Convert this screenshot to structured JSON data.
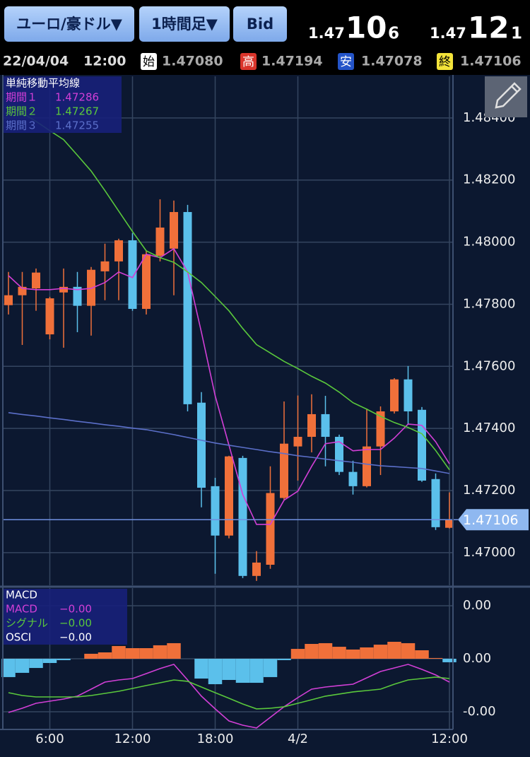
{
  "header": {
    "buttons": [
      "ユーロ/豪ドル▼",
      "1時間足▼",
      "Bid"
    ],
    "bid": {
      "prefix": "1.47",
      "big": "10",
      "small": "6"
    },
    "ask": {
      "prefix": "1.47",
      "big": "12",
      "small": "1"
    }
  },
  "info": {
    "date": "22/04/04",
    "time": "12:00",
    "open_label": "始",
    "open": "1.47080",
    "high_label": "高",
    "high": "1.47194",
    "low_label": "安",
    "low": "1.47078",
    "close_label": "終",
    "close": "1.47106"
  },
  "chart_data": [
    {
      "type": "candlestick",
      "legend_title": "単純移動平均線",
      "up_color": "#f0703a",
      "down_color": "#5bc0eb",
      "open": [
        1.47797,
        1.47829,
        1.47851,
        1.47703,
        1.47838,
        1.47856,
        1.47795,
        1.47906,
        1.47938,
        1.48006,
        1.47785,
        1.47956,
        1.47979,
        1.48097,
        1.47483,
        1.47214,
        1.47055,
        1.47305,
        1.46925,
        1.46961,
        1.47176,
        1.47342,
        1.47373,
        1.47446,
        1.47373,
        1.4726,
        1.47214,
        1.47342,
        1.47455,
        1.47558,
        1.4746,
        1.47237,
        1.4708
      ],
      "high": [
        1.47904,
        1.47904,
        1.47915,
        1.47824,
        1.47915,
        1.47904,
        1.4792,
        1.47995,
        1.48011,
        1.48029,
        1.47972,
        1.48138,
        1.48134,
        1.4812,
        1.47517,
        1.47241,
        1.47312,
        1.47312,
        1.47005,
        1.47278,
        1.47487,
        1.47506,
        1.4751,
        1.47505,
        1.4738,
        1.47296,
        1.47464,
        1.47471,
        1.47562,
        1.47601,
        1.47469,
        1.47255,
        1.47194
      ],
      "low": [
        1.47767,
        1.47669,
        1.47779,
        1.47687,
        1.4766,
        1.4771,
        1.47699,
        1.47813,
        1.47813,
        1.47779,
        1.47767,
        1.47938,
        1.47829,
        1.47455,
        1.47146,
        1.46932,
        1.47046,
        1.46918,
        1.46909,
        1.46948,
        1.47169,
        1.47232,
        1.47323,
        1.47278,
        1.4725,
        1.47187,
        1.4721,
        1.4725,
        1.47448,
        1.47414,
        1.47228,
        1.47073,
        1.47078
      ],
      "close": [
        1.47829,
        1.47856,
        1.47902,
        1.47819,
        1.47856,
        1.47795,
        1.47911,
        1.47938,
        1.48006,
        1.47785,
        1.47961,
        1.48047,
        1.48097,
        1.47478,
        1.47209,
        1.47055,
        1.4731,
        1.46925,
        1.46968,
        1.47192,
        1.47351,
        1.47373,
        1.47446,
        1.47373,
        1.4726,
        1.47214,
        1.47342,
        1.47455,
        1.47558,
        1.47455,
        1.47232,
        1.47082,
        1.47106
      ],
      "series": [
        {
          "name": "期間１",
          "color": "#d23fd6",
          "values": [
            1.47892,
            1.47851,
            1.47847,
            1.47847,
            1.47851,
            1.47847,
            1.47851,
            1.4787,
            1.47904,
            1.47886,
            1.47961,
            1.4795,
            1.47979,
            1.47904,
            1.4771,
            1.47505,
            1.47346,
            1.47187,
            1.47091,
            1.47091,
            1.47169,
            1.47198,
            1.47278,
            1.47351,
            1.47357,
            1.47328,
            1.47332,
            1.47332,
            1.47369,
            1.47414,
            1.4741,
            1.47357,
            1.47286
          ]
        },
        {
          "name": "期間２",
          "color": "#5ac83c",
          "values": [
            1.48439,
            1.48416,
            1.48389,
            1.48359,
            1.4833,
            1.4828,
            1.48229,
            1.48166,
            1.481,
            1.48034,
            1.47972,
            1.4795,
            1.47935,
            1.47904,
            1.4787,
            1.47825,
            1.47779,
            1.47722,
            1.4767,
            1.47643,
            1.47616,
            1.47593,
            1.47568,
            1.47546,
            1.47517,
            1.47483,
            1.47462,
            1.47439,
            1.47419,
            1.47403,
            1.47383,
            1.47329,
            1.47267
          ]
        },
        {
          "name": "期間３",
          "color": "#5b6fc9",
          "values": [
            1.47451,
            1.47445,
            1.4744,
            1.47434,
            1.47429,
            1.47423,
            1.47418,
            1.47412,
            1.47407,
            1.47401,
            1.47396,
            1.47388,
            1.4738,
            1.47371,
            1.47362,
            1.47353,
            1.47346,
            1.47339,
            1.47332,
            1.47325,
            1.47319,
            1.47312,
            1.47307,
            1.47301,
            1.47296,
            1.47291,
            1.47285,
            1.4728,
            1.47277,
            1.47274,
            1.47271,
            1.47263,
            1.47255
          ]
        }
      ],
      "current_price": 1.47106,
      "ylim": [
        1.46895,
        1.48534
      ],
      "yticks": [
        {
          "value": 1.47,
          "label": "1.47000"
        },
        {
          "value": 1.472,
          "label": "1.47200"
        },
        {
          "value": 1.474,
          "label": "1.47400"
        },
        {
          "value": 1.476,
          "label": "1.47600"
        },
        {
          "value": 1.478,
          "label": "1.47800"
        },
        {
          "value": 1.48,
          "label": "1.48000"
        },
        {
          "value": 1.482,
          "label": "1.48200"
        },
        {
          "value": 1.484,
          "label": "1.48400"
        }
      ],
      "grid": true
    },
    {
      "type": "macd",
      "legend_title": "MACD",
      "categories": [
        null,
        null,
        null,
        "6:00",
        null,
        null,
        null,
        null,
        null,
        "12:00",
        null,
        null,
        null,
        null,
        null,
        "18:00",
        null,
        null,
        null,
        null,
        null,
        "4/2",
        null,
        null,
        null,
        null,
        null,
        null,
        null,
        null,
        null,
        null,
        "12:00"
      ],
      "series": [
        {
          "name": "MACD",
          "color": "#d23fd6",
          "legend_value": "−0.00",
          "values": [
            -0.000507,
            -0.000467,
            -0.00042,
            -0.0004,
            -0.00038,
            -0.000353,
            -0.000287,
            -0.00022,
            -0.0002,
            -0.000187,
            -0.00014,
            -9.3e-05,
            -5.3e-05,
            -0.0002,
            -0.000353,
            -0.000473,
            -0.000587,
            -0.000627,
            -0.000653,
            -0.000553,
            -0.000453,
            -0.000367,
            -0.000287,
            -0.000267,
            -0.000253,
            -0.00024,
            -0.00018,
            -0.00012,
            -8.7e-05,
            -5.3e-05,
            -0.0001,
            -0.000153,
            -0.00022
          ]
        },
        {
          "name": "シグナル",
          "color": "#5ac83c",
          "legend_value": "−0.00",
          "values": [
            -0.00032,
            -0.000347,
            -0.00036,
            -0.00036,
            -0.00036,
            -0.00036,
            -0.000347,
            -0.000327,
            -0.000307,
            -0.00028,
            -0.000253,
            -0.000227,
            -0.0002,
            -0.000213,
            -0.000267,
            -0.00032,
            -0.000373,
            -0.000427,
            -0.000473,
            -0.000467,
            -0.000453,
            -0.00042,
            -0.000387,
            -0.000353,
            -0.000333,
            -0.000313,
            -0.0003,
            -0.000287,
            -0.00024,
            -0.0002,
            -0.000187,
            -0.000173,
            -0.000187
          ]
        }
      ],
      "histogram": {
        "name": "OSCI",
        "legend_value": "−0.00",
        "up_color": "#f0703a",
        "down_color": "#5bc0eb",
        "values": [
          -0.000173,
          -0.000133,
          -8.7e-05,
          -4e-05,
          -1.3e-05,
          0,
          4.7e-05,
          6e-05,
          0.00012,
          0.0001,
          0.0001,
          0.000127,
          0.000147,
          0,
          -0.000187,
          -0.00024,
          -0.0002,
          -0.000227,
          -0.000227,
          -0.000173,
          -1.3e-05,
          9.3e-05,
          0.00014,
          0.000147,
          0.000113,
          8.7e-05,
          0.000107,
          0.000133,
          0.00016,
          0.000147,
          8e-05,
          7e-06,
          -3.3e-05
        ]
      },
      "ylim": [
        -0.000667,
        0.000667
      ],
      "yticks": [
        {
          "value": -0.0005,
          "label": "-0.00"
        },
        {
          "value": 0,
          "label": "0.00"
        },
        {
          "value": 0.0005,
          "label": "0.00"
        }
      ],
      "grid": true
    }
  ]
}
